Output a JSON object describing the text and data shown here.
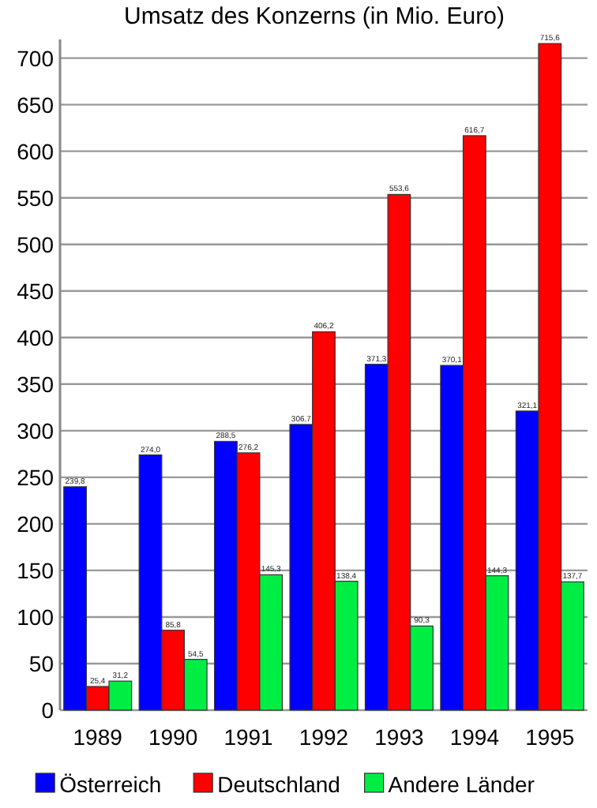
{
  "chart_data": {
    "type": "bar",
    "title": "Umsatz des Konzerns (in Mio. Euro)",
    "categories": [
      "1989",
      "1990",
      "1991",
      "1992",
      "1993",
      "1994",
      "1995"
    ],
    "series": [
      {
        "name": "Österreich",
        "color": "#0000ff",
        "values": [
          239.8,
          274.0,
          288.5,
          306.7,
          371.3,
          370.1,
          321.1
        ],
        "value_labels": [
          "239,8",
          "274,0",
          "288,5",
          "306,7",
          "371,3",
          "370,1",
          "321,1"
        ]
      },
      {
        "name": "Deutschland",
        "color": "#ff0000",
        "values": [
          25.4,
          85.8,
          276.2,
          406.2,
          553.6,
          616.7,
          715.6
        ],
        "value_labels": [
          "25,4",
          "85,8",
          "276,2",
          "406,2",
          "553,6",
          "616,7",
          "715,6"
        ]
      },
      {
        "name": "Andere Länder",
        "color": "#00ee44",
        "values": [
          31.2,
          54.5,
          145.3,
          138.4,
          90.3,
          144.3,
          137.7
        ],
        "value_labels": [
          "31,2",
          "54,5",
          "145,3",
          "138,4",
          "90,3",
          "144,3",
          "137,7"
        ]
      }
    ],
    "ylim": [
      0,
      720
    ],
    "yticks": [
      0,
      50,
      100,
      150,
      200,
      250,
      300,
      350,
      400,
      450,
      500,
      550,
      600,
      650,
      700
    ],
    "grid": "y",
    "legend": "bottom"
  }
}
